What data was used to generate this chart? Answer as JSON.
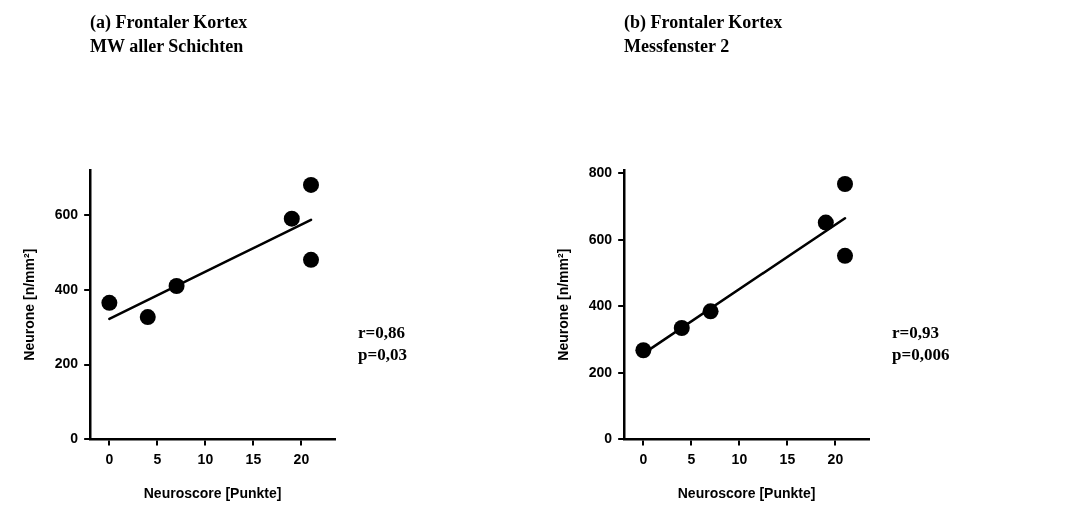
{
  "chart_data": [
    {
      "type": "scatter",
      "title": "(a) Frontaler Kortex",
      "subtitle": "MW aller Schichten",
      "xlabel": "Neuroscore [Punkte]",
      "ylabel": "Neurone [n/mm²]",
      "annotations": [
        "r=0,86",
        "p=0,03"
      ],
      "series": [
        {
          "color": "#000000",
          "x": [
            0,
            4,
            7,
            19,
            21,
            21
          ],
          "values": [
            365,
            327,
            410,
            590,
            680,
            480
          ]
        },
        {
          "type": "line",
          "color": "#000000",
          "x": [
            0,
            21
          ],
          "values": [
            322,
            587
          ],
          "marker": "none",
          "line_style": "solid"
        }
      ],
      "xlim": [
        -2,
        23.5
      ],
      "xticks": [
        0,
        5,
        10,
        15,
        20
      ],
      "ylim": [
        0,
        720
      ],
      "yticks": [
        0,
        200,
        400,
        600
      ],
      "grid": false,
      "legend": false,
      "marker": "circle"
    },
    {
      "type": "scatter",
      "title": "(b) Frontaler Kortex",
      "subtitle": "Messfenster 2",
      "xlabel": "Neuroscore [Punkte]",
      "ylabel": "Neurone [n/mm²]",
      "annotations": [
        "r=0,93",
        "p=0,006"
      ],
      "series": [
        {
          "color": "#000000",
          "x": [
            0,
            4,
            7,
            19,
            21,
            21
          ],
          "values": [
            268,
            335,
            385,
            652,
            768,
            552
          ]
        },
        {
          "type": "line",
          "color": "#000000",
          "x": [
            0,
            21
          ],
          "values": [
            258,
            665
          ],
          "marker": "none",
          "line_style": "solid"
        }
      ],
      "xlim": [
        -2,
        23.5
      ],
      "xticks": [
        0,
        5,
        10,
        15,
        20
      ],
      "ylim": [
        0,
        810
      ],
      "yticks": [
        0,
        200,
        400,
        600,
        800
      ],
      "grid": false,
      "legend": false,
      "marker": "circle"
    }
  ]
}
